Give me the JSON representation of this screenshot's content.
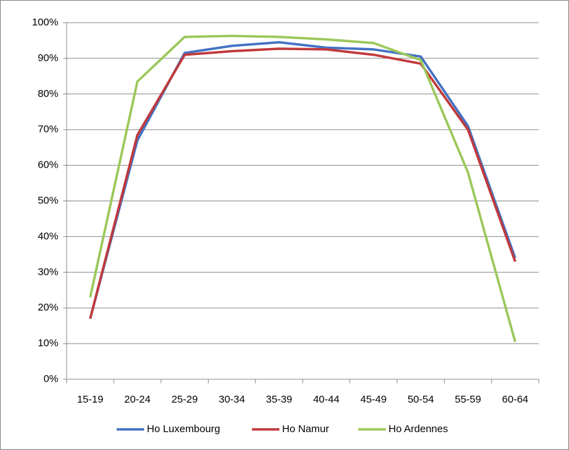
{
  "chart_data": {
    "type": "line",
    "categories": [
      "15-19",
      "20-24",
      "25-29",
      "30-34",
      "35-39",
      "40-44",
      "45-49",
      "50-54",
      "55-59",
      "60-64"
    ],
    "series": [
      {
        "name": "Ho Luxembourg",
        "color": "#4472c4",
        "values": [
          17,
          67,
          91.5,
          93.5,
          94.5,
          93,
          92.5,
          90.5,
          71,
          34
        ]
      },
      {
        "name": "Ho Namur",
        "color": "#c0393b",
        "values": [
          17,
          68.5,
          91,
          92,
          92.7,
          92.5,
          91,
          88.5,
          70,
          33
        ]
      },
      {
        "name": "Ho Ardennes",
        "color": "#9bc85a",
        "values": [
          23,
          83.5,
          96,
          96.3,
          96,
          95.3,
          94.3,
          89.5,
          58,
          10.5
        ]
      }
    ],
    "ylim": [
      0,
      100
    ],
    "yticks": [
      {
        "value": 0,
        "label": "0%"
      },
      {
        "value": 10,
        "label": "10%"
      },
      {
        "value": 20,
        "label": "20%"
      },
      {
        "value": 30,
        "label": "30%"
      },
      {
        "value": 40,
        "label": "40%"
      },
      {
        "value": 50,
        "label": "50%"
      },
      {
        "value": 60,
        "label": "60%"
      },
      {
        "value": 70,
        "label": "70%"
      },
      {
        "value": 80,
        "label": "80%"
      },
      {
        "value": 90,
        "label": "90%"
      },
      {
        "value": 100,
        "label": "100%"
      }
    ],
    "grid": true,
    "legend": "bottom"
  }
}
